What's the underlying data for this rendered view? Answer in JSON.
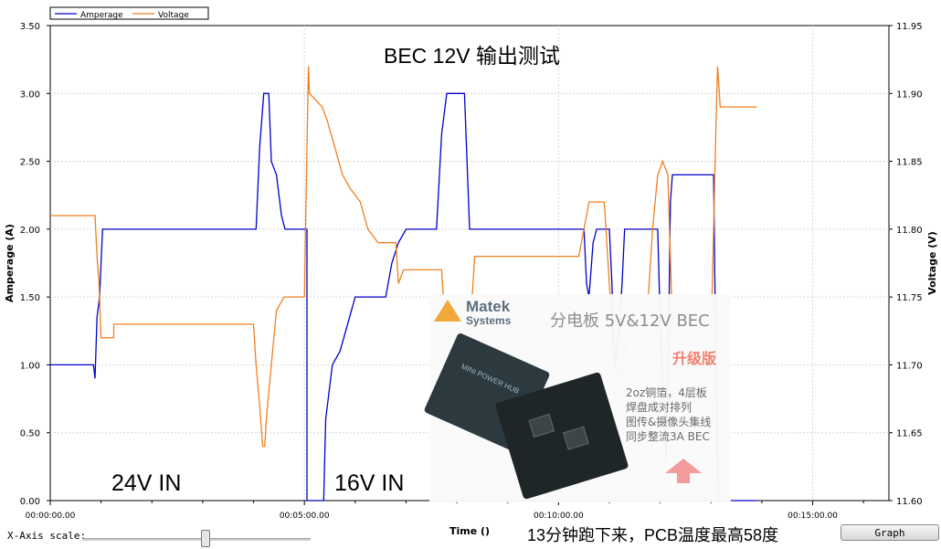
{
  "chart_data": {
    "type": "line",
    "title": "BEC 12V 输出测试",
    "xlabel": "Time ()",
    "ylabel_left": "Amperage (A)",
    "ylabel_right": "Voltage (V)",
    "xlim_minutes": [
      0,
      16.5
    ],
    "ylim_left": [
      0,
      3.5
    ],
    "ylim_right": [
      11.6,
      11.95
    ],
    "x_tick_labels": [
      "00:00:00.00",
      "00:05:00.00",
      "00:10:00.00",
      "00:15:00.00"
    ],
    "x_tick_values": [
      0,
      5,
      10,
      15
    ],
    "y_left_ticks": [
      "0.00",
      "0.50",
      "1.00",
      "1.50",
      "2.00",
      "2.50",
      "3.00",
      "3.50"
    ],
    "y_left_values": [
      0,
      0.5,
      1.0,
      1.5,
      2.0,
      2.5,
      3.0,
      3.5
    ],
    "y_right_ticks": [
      "11.60",
      "11.65",
      "11.70",
      "11.75",
      "11.80",
      "11.85",
      "11.90",
      "11.95"
    ],
    "y_right_values": [
      11.6,
      11.65,
      11.7,
      11.75,
      11.8,
      11.85,
      11.9,
      11.95
    ],
    "grid": true,
    "legend": "top-left",
    "series": [
      {
        "name": "Amperage",
        "axis": "left",
        "color": "#0000cc",
        "points": [
          [
            0,
            1.0
          ],
          [
            0.85,
            1.0
          ],
          [
            0.88,
            0.9
          ],
          [
            0.92,
            1.35
          ],
          [
            0.97,
            1.5
          ],
          [
            1.0,
            1.75
          ],
          [
            1.03,
            2.0
          ],
          [
            4.05,
            2.0
          ],
          [
            4.12,
            2.6
          ],
          [
            4.2,
            3.0
          ],
          [
            4.3,
            3.0
          ],
          [
            4.35,
            2.5
          ],
          [
            4.45,
            2.4
          ],
          [
            4.55,
            2.1
          ],
          [
            4.62,
            2.0
          ],
          [
            5.05,
            2.0
          ],
          [
            5.05,
            0.0
          ],
          [
            5.38,
            0.0
          ],
          [
            5.42,
            0.6
          ],
          [
            5.55,
            1.0
          ],
          [
            5.7,
            1.1
          ],
          [
            5.85,
            1.3
          ],
          [
            6.0,
            1.5
          ],
          [
            6.6,
            1.5
          ],
          [
            6.72,
            1.75
          ],
          [
            6.85,
            1.9
          ],
          [
            7.0,
            2.0
          ],
          [
            7.6,
            2.0
          ],
          [
            7.7,
            2.7
          ],
          [
            7.8,
            3.0
          ],
          [
            8.15,
            3.0
          ],
          [
            8.2,
            2.5
          ],
          [
            8.25,
            2.0
          ],
          [
            10.5,
            2.0
          ],
          [
            10.55,
            1.6
          ],
          [
            10.6,
            1.5
          ],
          [
            10.68,
            1.9
          ],
          [
            10.75,
            2.0
          ],
          [
            11.0,
            2.0
          ],
          [
            11.05,
            1.6
          ],
          [
            11.08,
            1.2
          ],
          [
            11.12,
            1.0
          ],
          [
            11.2,
            1.3
          ],
          [
            11.25,
            1.6
          ],
          [
            11.3,
            2.0
          ],
          [
            11.95,
            2.0
          ],
          [
            11.98,
            1.6
          ],
          [
            12.05,
            0.8
          ],
          [
            12.12,
            0.3
          ],
          [
            12.16,
            1.0
          ],
          [
            12.2,
            2.2
          ],
          [
            12.24,
            2.4
          ],
          [
            13.05,
            2.4
          ],
          [
            13.08,
            1.5
          ],
          [
            13.12,
            0.5
          ],
          [
            13.15,
            0.0
          ],
          [
            13.9,
            0.0
          ]
        ]
      },
      {
        "name": "Voltage",
        "axis": "right",
        "color": "#f07f1f",
        "points": [
          [
            0,
            11.81
          ],
          [
            0.88,
            11.81
          ],
          [
            0.92,
            11.78
          ],
          [
            0.96,
            11.76
          ],
          [
            1.0,
            11.72
          ],
          [
            1.25,
            11.72
          ],
          [
            1.25,
            11.73
          ],
          [
            4.0,
            11.73
          ],
          [
            4.05,
            11.7
          ],
          [
            4.12,
            11.67
          ],
          [
            4.18,
            11.64
          ],
          [
            4.22,
            11.64
          ],
          [
            4.25,
            11.66
          ],
          [
            4.35,
            11.7
          ],
          [
            4.45,
            11.74
          ],
          [
            4.6,
            11.75
          ],
          [
            5.0,
            11.75
          ],
          [
            5.05,
            11.86
          ],
          [
            5.08,
            11.92
          ],
          [
            5.1,
            11.9
          ],
          [
            5.35,
            11.89
          ],
          [
            5.45,
            11.88
          ],
          [
            5.6,
            11.86
          ],
          [
            5.75,
            11.84
          ],
          [
            5.9,
            11.83
          ],
          [
            6.1,
            11.82
          ],
          [
            6.25,
            11.8
          ],
          [
            6.45,
            11.79
          ],
          [
            6.8,
            11.79
          ],
          [
            6.85,
            11.76
          ],
          [
            6.95,
            11.77
          ],
          [
            7.7,
            11.77
          ],
          [
            7.75,
            11.74
          ],
          [
            7.82,
            11.72
          ],
          [
            8.25,
            11.72
          ],
          [
            8.35,
            11.78
          ],
          [
            10.4,
            11.78
          ],
          [
            10.5,
            11.8
          ],
          [
            10.6,
            11.82
          ],
          [
            10.9,
            11.82
          ],
          [
            11.0,
            11.76
          ],
          [
            11.1,
            11.7
          ],
          [
            11.2,
            11.69
          ],
          [
            11.35,
            11.72
          ],
          [
            11.5,
            11.74
          ],
          [
            11.75,
            11.74
          ],
          [
            11.85,
            11.8
          ],
          [
            11.95,
            11.84
          ],
          [
            12.05,
            11.85
          ],
          [
            12.15,
            11.84
          ],
          [
            12.25,
            11.72
          ],
          [
            13.0,
            11.72
          ],
          [
            13.05,
            11.8
          ],
          [
            13.1,
            11.88
          ],
          [
            13.13,
            11.92
          ],
          [
            13.18,
            11.89
          ],
          [
            13.9,
            11.89
          ]
        ]
      }
    ]
  },
  "annotations": {
    "left_text": "24V IN",
    "middle_text": "16V IN",
    "footnote": "13分钟跑下来，PCB温度最高58度"
  },
  "controls": {
    "xaxis_scale_label": "X-Axis scale:",
    "graph_button_label": "Graph"
  },
  "advertisement": {
    "brand_line1": "Matek",
    "brand_line2": "Systems",
    "headline": "分电板 5V&12V BEC",
    "badge": "升级版",
    "feature_lines": [
      "2oz铜箔，4层板",
      "焊盘成对排列",
      "图传&摄像头集线",
      "同步整流3A BEC"
    ],
    "board_label": "MINI POWER HUB"
  }
}
